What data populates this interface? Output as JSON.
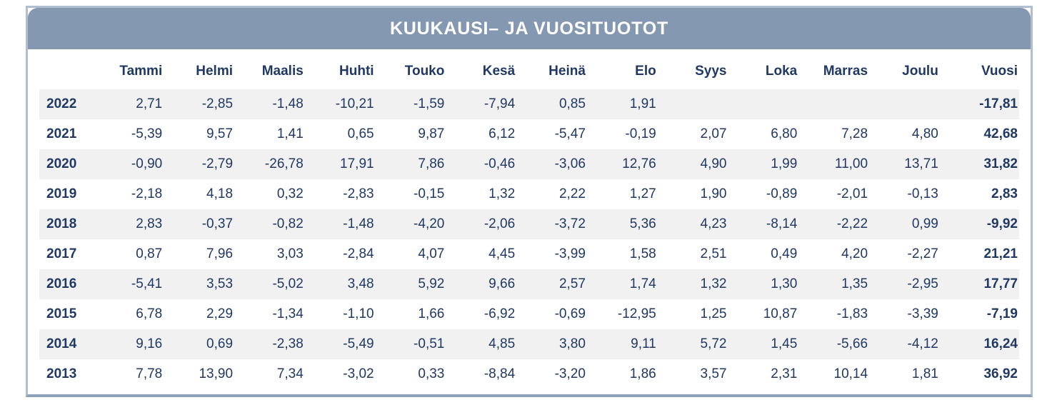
{
  "title": "KUUKAUSI– JA VUOSITUOTOT",
  "colors": {
    "header_bg": "#8598B1",
    "header_text": "#FFFFFF",
    "table_text": "#1F3864",
    "alt_row_bg": "#F1F1F2",
    "border": "#B1BECF"
  },
  "chart_data": {
    "type": "table",
    "title": "KUUKAUSI– JA VUOSITUOTOT",
    "categories": [
      "Tammi",
      "Helmi",
      "Maalis",
      "Huhti",
      "Touko",
      "Kesä",
      "Heinä",
      "Elo",
      "Syys",
      "Loka",
      "Marras",
      "Joulu"
    ],
    "total_column": "Vuosi",
    "number_format": "two decimals, comma as decimal separator",
    "rows": [
      {
        "year": "2022",
        "values": [
          2.71,
          -2.85,
          -1.48,
          -10.21,
          -1.59,
          -7.94,
          0.85,
          1.91,
          null,
          null,
          null,
          null
        ],
        "total": -17.81
      },
      {
        "year": "2021",
        "values": [
          -5.39,
          9.57,
          1.41,
          0.65,
          9.87,
          6.12,
          -5.47,
          -0.19,
          2.07,
          6.8,
          7.28,
          4.8
        ],
        "total": 42.68
      },
      {
        "year": "2020",
        "values": [
          -0.9,
          -2.79,
          -26.78,
          17.91,
          7.86,
          -0.46,
          -3.06,
          12.76,
          4.9,
          1.99,
          11.0,
          13.71
        ],
        "total": 31.82
      },
      {
        "year": "2019",
        "values": [
          -2.18,
          4.18,
          0.32,
          -2.83,
          -0.15,
          1.32,
          2.22,
          1.27,
          1.9,
          -0.89,
          -2.01,
          -0.13
        ],
        "total": 2.83
      },
      {
        "year": "2018",
        "values": [
          2.83,
          -0.37,
          -0.82,
          -1.48,
          -4.2,
          -2.06,
          -3.72,
          5.36,
          4.23,
          -8.14,
          -2.22,
          0.99
        ],
        "total": -9.92
      },
      {
        "year": "2017",
        "values": [
          0.87,
          7.96,
          3.03,
          -2.84,
          4.07,
          4.45,
          -3.99,
          1.58,
          2.51,
          0.49,
          4.2,
          -2.27
        ],
        "total": 21.21
      },
      {
        "year": "2016",
        "values": [
          -5.41,
          3.53,
          -5.02,
          3.48,
          5.92,
          9.66,
          2.57,
          1.74,
          1.32,
          1.3,
          1.35,
          -2.95
        ],
        "total": 17.77
      },
      {
        "year": "2015",
        "values": [
          6.78,
          2.29,
          -1.34,
          -1.1,
          1.66,
          -6.92,
          -0.69,
          -12.95,
          1.25,
          10.87,
          -1.83,
          -3.39
        ],
        "total": -7.19
      },
      {
        "year": "2014",
        "values": [
          9.16,
          0.69,
          -2.38,
          -5.49,
          -0.51,
          4.85,
          3.8,
          9.11,
          5.72,
          1.45,
          -5.66,
          -4.12
        ],
        "total": 16.24
      },
      {
        "year": "2013",
        "values": [
          7.78,
          13.9,
          7.34,
          -3.02,
          0.33,
          -8.84,
          -3.2,
          1.86,
          3.57,
          2.31,
          10.14,
          1.81
        ],
        "total": 36.92
      }
    ]
  }
}
